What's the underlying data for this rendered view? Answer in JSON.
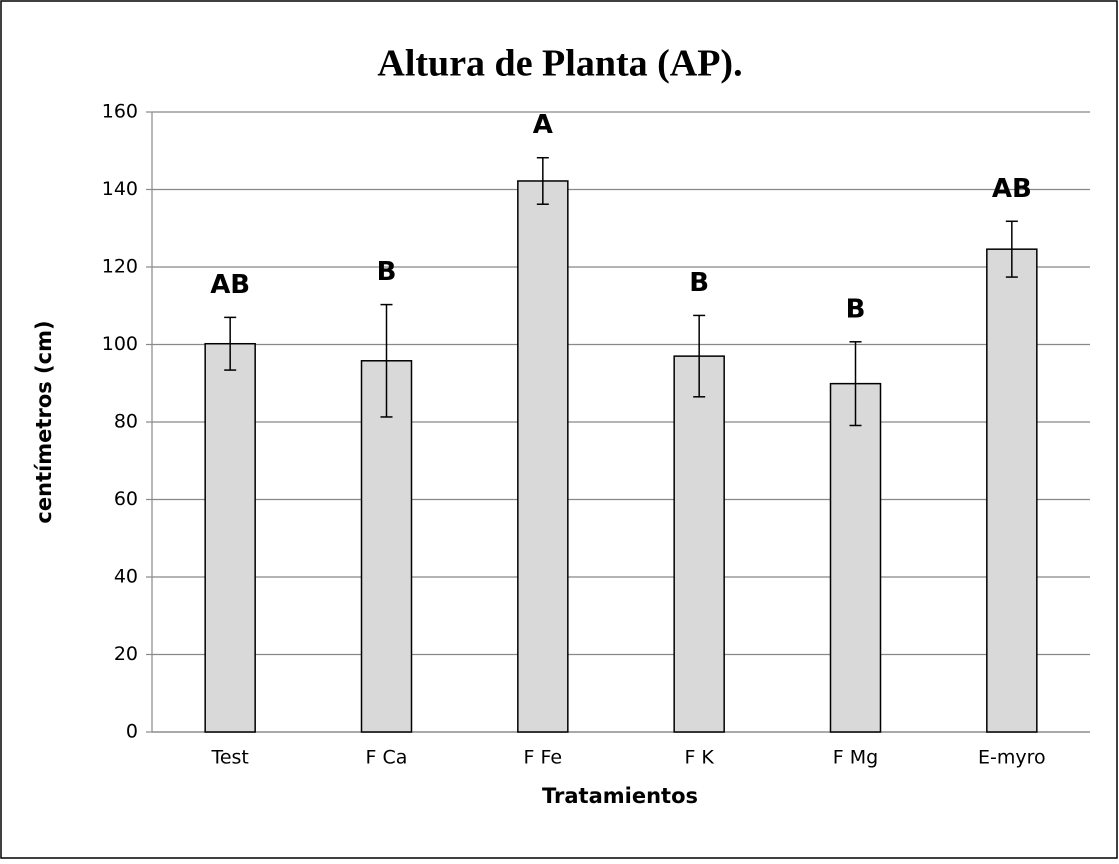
{
  "chart_data": {
    "type": "bar",
    "title": "Altura de Planta (AP).",
    "x_label": "Tratamientos",
    "y_label": "centímetros (cm)",
    "categories": [
      "Test",
      "F Ca",
      "F Fe",
      "F K",
      "F Mg",
      "E-myro"
    ],
    "values": [
      100.2,
      95.8,
      142.2,
      97,
      89.9,
      124.6
    ],
    "errors": [
      6.8,
      14.5,
      6,
      10.5,
      10.8,
      7.2
    ],
    "group_labels": [
      "AB",
      "B",
      "A",
      "B",
      "B",
      "AB"
    ],
    "color": "#d9d9d9",
    "ylim": [
      0,
      160
    ],
    "yticks": [
      0,
      20,
      40,
      60,
      80,
      100,
      120,
      140,
      160
    ],
    "grid": true
  }
}
